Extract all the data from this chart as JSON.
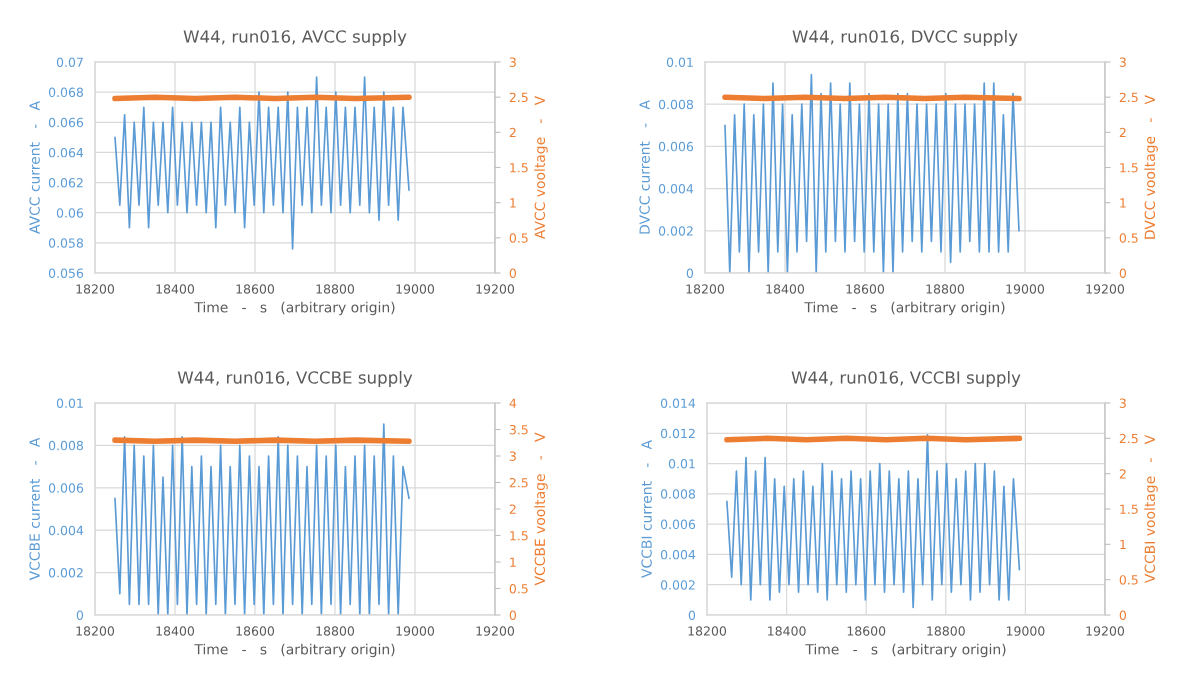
{
  "chart_data": [
    {
      "type": "line",
      "title": "W44, run016, AVCC supply",
      "xlabel": "Time   -   s   (arbitrary origin)",
      "ylabel": "AVCC current   -   A",
      "y2label": "AVCC vooltage   -   V",
      "grid": true,
      "xlim": [
        18200,
        19200
      ],
      "xticks": [
        18200,
        18400,
        18600,
        18800,
        19000,
        19200
      ],
      "ylim": [
        0.056,
        0.07
      ],
      "yticks": [
        0.056,
        0.058,
        0.06,
        0.062,
        0.064,
        0.066,
        0.068,
        0.07
      ],
      "y2lim": [
        0,
        3
      ],
      "y2ticks": [
        0,
        0.5,
        1,
        1.5,
        2,
        2.5,
        3
      ],
      "x": [
        18250,
        18262,
        18274,
        18286,
        18298,
        18310,
        18322,
        18334,
        18346,
        18358,
        18370,
        18382,
        18394,
        18406,
        18418,
        18430,
        18442,
        18454,
        18466,
        18478,
        18490,
        18502,
        18514,
        18526,
        18538,
        18550,
        18562,
        18574,
        18586,
        18598,
        18610,
        18622,
        18634,
        18646,
        18658,
        18670,
        18682,
        18694,
        18706,
        18718,
        18730,
        18742,
        18754,
        18766,
        18778,
        18790,
        18802,
        18814,
        18826,
        18838,
        18850,
        18862,
        18874,
        18886,
        18898,
        18910,
        18922,
        18934,
        18946,
        18958,
        18970,
        18985
      ],
      "series": [
        {
          "color": "#5b9bd5",
          "values": [
            0.065,
            0.0605,
            0.0665,
            0.059,
            0.066,
            0.0605,
            0.067,
            0.059,
            0.066,
            0.0605,
            0.066,
            0.06,
            0.067,
            0.0605,
            0.066,
            0.06,
            0.066,
            0.0605,
            0.066,
            0.06,
            0.066,
            0.059,
            0.067,
            0.0605,
            0.066,
            0.06,
            0.067,
            0.059,
            0.066,
            0.0605,
            0.068,
            0.06,
            0.067,
            0.0605,
            0.067,
            0.06,
            0.068,
            0.0576,
            0.067,
            0.0605,
            0.067,
            0.06,
            0.069,
            0.0605,
            0.067,
            0.06,
            0.068,
            0.0605,
            0.067,
            0.06,
            0.067,
            0.0605,
            0.069,
            0.06,
            0.067,
            0.0595,
            0.068,
            0.0605,
            0.067,
            0.0595,
            0.067,
            0.0615
          ]
        },
        {
          "color": "#ed7d31",
          "axis": "y2",
          "x": [
            18250,
            18350,
            18450,
            18550,
            18650,
            18750,
            18850,
            18985
          ],
          "values": [
            2.48,
            2.5,
            2.48,
            2.5,
            2.48,
            2.5,
            2.48,
            2.5
          ]
        }
      ]
    },
    {
      "type": "line",
      "title": "W44, run016, DVCC supply",
      "xlabel": "Time   -   s   (arbitrary origin)",
      "ylabel": "DVCC current   -   A",
      "y2label": "DVCC vooltage   -   V",
      "grid": true,
      "xlim": [
        18200,
        19200
      ],
      "xticks": [
        18200,
        18400,
        18600,
        18800,
        19000,
        19200
      ],
      "ylim": [
        0,
        0.01
      ],
      "yticks": [
        0,
        0.002,
        0.004,
        0.006,
        0.008,
        0.01
      ],
      "y2lim": [
        0,
        3
      ],
      "y2ticks": [
        0,
        0.5,
        1,
        1.5,
        2,
        2.5,
        3
      ],
      "x": [
        18250,
        18262,
        18274,
        18286,
        18298,
        18310,
        18322,
        18334,
        18346,
        18358,
        18370,
        18382,
        18394,
        18406,
        18418,
        18430,
        18442,
        18454,
        18466,
        18478,
        18490,
        18502,
        18514,
        18526,
        18538,
        18550,
        18562,
        18574,
        18586,
        18598,
        18610,
        18622,
        18634,
        18646,
        18658,
        18670,
        18682,
        18694,
        18706,
        18718,
        18730,
        18742,
        18754,
        18766,
        18778,
        18790,
        18802,
        18814,
        18826,
        18838,
        18850,
        18862,
        18874,
        18886,
        18898,
        18910,
        18922,
        18934,
        18946,
        18958,
        18970,
        18985
      ],
      "series": [
        {
          "color": "#5b9bd5",
          "values": [
            0.007,
            0.0,
            0.0075,
            0.001,
            0.008,
            0.0,
            0.0075,
            0.001,
            0.008,
            0.0,
            0.009,
            0.001,
            0.008,
            0.0,
            0.0075,
            0.001,
            0.008,
            0.0015,
            0.0094,
            0.0,
            0.0085,
            0.001,
            0.009,
            0.0015,
            0.008,
            0.001,
            0.009,
            0.0015,
            0.008,
            0.001,
            0.0085,
            0.001,
            0.008,
            0.0,
            0.008,
            0.0,
            0.0085,
            0.001,
            0.0085,
            0.0015,
            0.008,
            0.001,
            0.008,
            0.0015,
            0.008,
            0.001,
            0.0085,
            0.0005,
            0.008,
            0.001,
            0.008,
            0.0015,
            0.008,
            0.001,
            0.009,
            0.001,
            0.009,
            0.001,
            0.0075,
            0.001,
            0.0085,
            0.002
          ]
        },
        {
          "color": "#ed7d31",
          "axis": "y2",
          "x": [
            18250,
            18350,
            18450,
            18550,
            18650,
            18750,
            18850,
            18985
          ],
          "values": [
            2.5,
            2.48,
            2.5,
            2.48,
            2.5,
            2.48,
            2.5,
            2.48
          ]
        }
      ]
    },
    {
      "type": "line",
      "title": "W44, run016, VCCBE supply",
      "xlabel": "Time   -   s   (arbitrary origin)",
      "ylabel": "VCCBE current   -   A",
      "y2label": "VCCBE vooltage   -   V",
      "grid": true,
      "xlim": [
        18200,
        19200
      ],
      "xticks": [
        18200,
        18400,
        18600,
        18800,
        19000,
        19200
      ],
      "ylim": [
        0,
        0.01
      ],
      "yticks": [
        0,
        0.002,
        0.004,
        0.006,
        0.008,
        0.01
      ],
      "y2lim": [
        0,
        4
      ],
      "y2ticks": [
        0,
        0.5,
        1,
        1.5,
        2,
        2.5,
        3,
        3.5,
        4
      ],
      "x": [
        18250,
        18262,
        18274,
        18286,
        18298,
        18310,
        18322,
        18334,
        18346,
        18358,
        18370,
        18382,
        18394,
        18406,
        18418,
        18430,
        18442,
        18454,
        18466,
        18478,
        18490,
        18502,
        18514,
        18526,
        18538,
        18550,
        18562,
        18574,
        18586,
        18598,
        18610,
        18622,
        18634,
        18646,
        18658,
        18670,
        18682,
        18694,
        18706,
        18718,
        18730,
        18742,
        18754,
        18766,
        18778,
        18790,
        18802,
        18814,
        18826,
        18838,
        18850,
        18862,
        18874,
        18886,
        18898,
        18910,
        18922,
        18934,
        18946,
        18958,
        18970,
        18985
      ],
      "series": [
        {
          "color": "#5b9bd5",
          "values": [
            0.0055,
            0.001,
            0.0084,
            0.0005,
            0.008,
            0.0005,
            0.0075,
            0.0005,
            0.008,
            0.0,
            0.0065,
            0.0,
            0.008,
            0.0005,
            0.0084,
            0.0,
            0.007,
            0.0005,
            0.0075,
            0.0,
            0.007,
            0.0005,
            0.008,
            0.0,
            0.007,
            0.0005,
            0.008,
            0.0,
            0.0075,
            0.0005,
            0.007,
            0.0,
            0.0075,
            0.0005,
            0.0084,
            0.0,
            0.008,
            0.0005,
            0.0075,
            0.0,
            0.007,
            0.0005,
            0.008,
            0.0,
            0.0075,
            0.0005,
            0.008,
            0.0,
            0.007,
            0.0005,
            0.0075,
            0.0,
            0.008,
            0.0,
            0.0075,
            0.0005,
            0.009,
            0.0,
            0.0075,
            0.0,
            0.007,
            0.0055
          ]
        },
        {
          "color": "#ed7d31",
          "axis": "y2",
          "x": [
            18250,
            18350,
            18450,
            18550,
            18650,
            18750,
            18850,
            18985
          ],
          "values": [
            3.3,
            3.28,
            3.3,
            3.28,
            3.3,
            3.28,
            3.3,
            3.28
          ]
        }
      ]
    },
    {
      "type": "line",
      "title": "W44, run016, VCCBI supply",
      "xlabel": "Time   -   s   (arbitrary origin)",
      "ylabel": "VCCBI current   -   A",
      "y2label": "VCCBI vooltage   -   V",
      "grid": true,
      "xlim": [
        18200,
        19200
      ],
      "xticks": [
        18200,
        18400,
        18600,
        18800,
        19000,
        19200
      ],
      "ylim": [
        0,
        0.014
      ],
      "yticks": [
        0,
        0.002,
        0.004,
        0.006,
        0.008,
        0.01,
        0.012,
        0.014
      ],
      "y2lim": [
        0,
        3
      ],
      "y2ticks": [
        0,
        0.5,
        1,
        1.5,
        2,
        2.5,
        3
      ],
      "x": [
        18250,
        18262,
        18274,
        18286,
        18298,
        18310,
        18322,
        18334,
        18346,
        18358,
        18370,
        18382,
        18394,
        18406,
        18418,
        18430,
        18442,
        18454,
        18466,
        18478,
        18490,
        18502,
        18514,
        18526,
        18538,
        18550,
        18562,
        18574,
        18586,
        18598,
        18610,
        18622,
        18634,
        18646,
        18658,
        18670,
        18682,
        18694,
        18706,
        18718,
        18730,
        18742,
        18754,
        18766,
        18778,
        18790,
        18802,
        18814,
        18826,
        18838,
        18850,
        18862,
        18874,
        18886,
        18898,
        18910,
        18922,
        18934,
        18946,
        18958,
        18970,
        18985
      ],
      "series": [
        {
          "color": "#5b9bd5",
          "values": [
            0.0075,
            0.0025,
            0.0095,
            0.002,
            0.0104,
            0.001,
            0.0095,
            0.002,
            0.0104,
            0.001,
            0.009,
            0.0015,
            0.0085,
            0.002,
            0.009,
            0.0015,
            0.0095,
            0.002,
            0.0085,
            0.0015,
            0.01,
            0.001,
            0.0095,
            0.002,
            0.009,
            0.0015,
            0.0095,
            0.002,
            0.009,
            0.001,
            0.0095,
            0.002,
            0.01,
            0.0015,
            0.0095,
            0.002,
            0.009,
            0.0015,
            0.0095,
            0.0005,
            0.009,
            0.002,
            0.0119,
            0.001,
            0.0095,
            0.002,
            0.01,
            0.0015,
            0.009,
            0.002,
            0.0095,
            0.001,
            0.01,
            0.0015,
            0.01,
            0.002,
            0.0095,
            0.001,
            0.0085,
            0.001,
            0.009,
            0.003
          ]
        },
        {
          "color": "#ed7d31",
          "axis": "y2",
          "x": [
            18250,
            18350,
            18450,
            18550,
            18650,
            18750,
            18850,
            18985
          ],
          "values": [
            2.48,
            2.5,
            2.48,
            2.5,
            2.48,
            2.5,
            2.48,
            2.5
          ]
        }
      ]
    }
  ]
}
